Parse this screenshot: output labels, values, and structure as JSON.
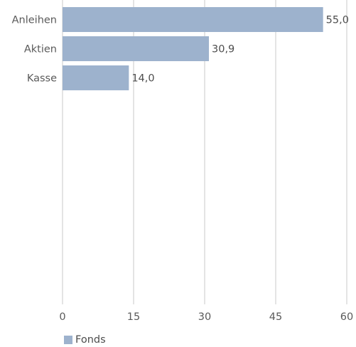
{
  "chart_data": {
    "type": "bar",
    "orientation": "horizontal",
    "categories": [
      "Anleihen",
      "Aktien",
      "Kasse"
    ],
    "series": [
      {
        "name": "Fonds",
        "values": [
          55.0,
          30.9,
          14.0
        ],
        "value_labels": [
          "55,0",
          "30,9",
          "14,0"
        ]
      }
    ],
    "xlim": [
      0,
      60
    ],
    "xticks": [
      "0",
      "15",
      "30",
      "45",
      "60"
    ],
    "grid": true,
    "legend_position": "bottom-left",
    "colors": {
      "bar": "#9db2cd",
      "grid": "#c8c8c8"
    }
  }
}
